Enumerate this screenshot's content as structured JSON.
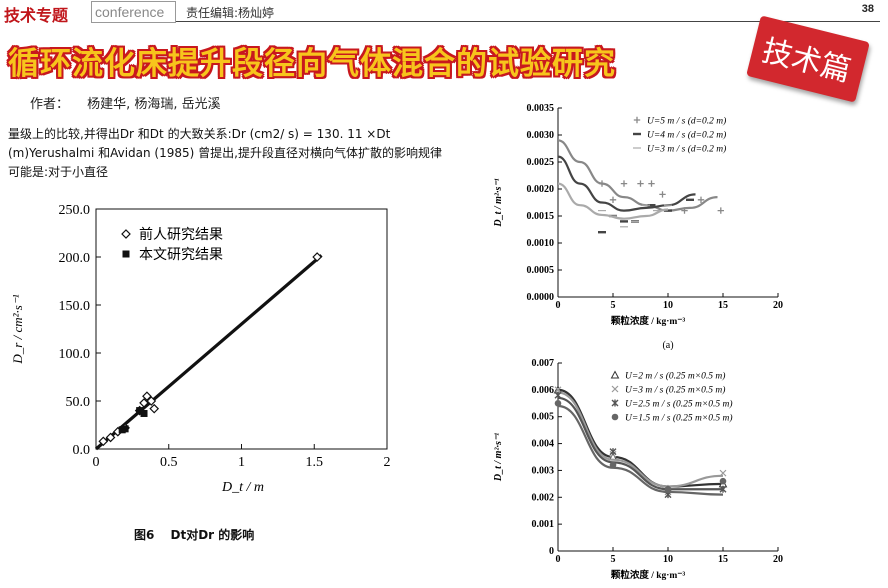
{
  "header": {
    "section_tag": "技术专题",
    "conference_label": "conference",
    "editor": "责任编辑:杨灿婷",
    "page_number": "38"
  },
  "article": {
    "title": "循环流化床提升段径向气体混合的试验研究",
    "badge": "技术篇",
    "authors_label": "作者：",
    "authors": "杨建华, 杨海瑞, 岳光溪",
    "body_text": "量级上的比较,并得出Dr 和Dt 的大致关系:Dr (cm2/ s) = 130. 11 ×Dt (m)Yerushalmi 和Avidan (1985) 曾提出,提升段直径对横向气体扩散的影响规律可能是:对于小直径"
  },
  "figure6": {
    "caption": "图6　 Dt对Dr 的影响",
    "colors": {
      "axis": "#111111",
      "fit": "#111111"
    },
    "chart_data": {
      "type": "scatter",
      "ylabel": "D_r / cm²·s⁻¹",
      "xlabel": "D_t / m",
      "xlim": [
        0,
        2
      ],
      "ylim": [
        0,
        250
      ],
      "xticks": [
        "0",
        "0.5",
        "1",
        "1.5",
        "2"
      ],
      "yticks": [
        "0.0",
        "50.0",
        "100.0",
        "150.0",
        "200.0",
        "250.0"
      ],
      "legend_position": "top-left",
      "series": [
        {
          "name": "前人研究结果",
          "marker": "diamond-open",
          "x": [
            0.05,
            0.1,
            0.15,
            0.2,
            0.3,
            0.33,
            0.35,
            0.38,
            0.4,
            1.52
          ],
          "y": [
            8,
            12,
            18,
            22,
            40,
            48,
            55,
            50,
            42,
            200
          ]
        },
        {
          "name": "本文研究结果",
          "marker": "square-filled",
          "x": [
            0.18,
            0.2,
            0.3,
            0.33
          ],
          "y": [
            20,
            21,
            40,
            37
          ]
        }
      ],
      "fit_line": {
        "x": [
          0,
          1.55
        ],
        "y": [
          0,
          201.7
        ]
      }
    }
  },
  "chart_a": {
    "sub_label": "(a)",
    "colors": {
      "s1": "#888888",
      "s2": "#444444",
      "s3": "#aaaaaa"
    },
    "chart_data": {
      "type": "scatter",
      "ylabel": "D_t / m²·s⁻¹",
      "xlabel": "颗粒浓度 / kg·m⁻³",
      "xlim": [
        0,
        20
      ],
      "ylim": [
        0,
        0.0035
      ],
      "xticks": [
        "0",
        "5",
        "10",
        "15",
        "20"
      ],
      "yticks": [
        "0.0000",
        "0.0005",
        "0.0010",
        "0.0015",
        "0.0020",
        "0.0025",
        "0.0030",
        "0.0035"
      ],
      "legend_position": "top-right",
      "series": [
        {
          "name": "U=5 m / s (d=0.2 m)",
          "marker": "plus",
          "x": [
            4,
            5,
            6,
            7.5,
            8.5,
            9.5,
            11.5,
            13,
            14.8
          ],
          "y": [
            0.0021,
            0.0018,
            0.0021,
            0.0021,
            0.0021,
            0.0019,
            0.0016,
            0.0018,
            0.0016
          ],
          "curve_x": [
            0,
            2,
            4,
            6,
            8,
            10,
            12,
            14.5
          ],
          "curve_y": [
            0.0029,
            0.0025,
            0.0021,
            0.00185,
            0.0017,
            0.0016,
            0.00165,
            0.00185
          ]
        },
        {
          "name": "U=4 m / s (d=0.2 m)",
          "marker": "dash",
          "x": [
            4,
            5,
            6,
            7,
            8.5,
            10,
            12
          ],
          "y": [
            0.0012,
            0.0015,
            0.0014,
            0.0014,
            0.0017,
            0.0016,
            0.0018
          ],
          "curve_x": [
            0,
            2,
            4,
            6,
            8,
            10,
            12.5
          ],
          "curve_y": [
            0.0026,
            0.0021,
            0.00175,
            0.0016,
            0.00165,
            0.0017,
            0.0019
          ]
        },
        {
          "name": "U=3 m / s (d=0.2 m)",
          "marker": "minus",
          "x": [
            4,
            5,
            6,
            7,
            8,
            9,
            10
          ],
          "y": [
            0.0016,
            0.0015,
            0.0013,
            0.0014,
            0.0017,
            0.0016,
            0.0017
          ],
          "curve_x": [
            0,
            2,
            4,
            6,
            8,
            10
          ],
          "curve_y": [
            0.0021,
            0.0017,
            0.00152,
            0.00145,
            0.0015,
            0.00162
          ]
        }
      ]
    }
  },
  "chart_b": {
    "colors": {
      "s1": "#333333",
      "s2": "#999999",
      "s3": "#555555",
      "s4": "#666666"
    },
    "chart_data": {
      "type": "scatter",
      "ylabel": "D_t / m²·s⁻¹",
      "xlabel": "颗粒浓度 / kg·m⁻³",
      "xlim": [
        0,
        20
      ],
      "ylim": [
        0,
        0.007
      ],
      "xticks": [
        "0",
        "5",
        "10",
        "15",
        "20"
      ],
      "yticks": [
        "0",
        "0.001",
        "0.002",
        "0.003",
        "0.004",
        "0.005",
        "0.006",
        "0.007"
      ],
      "legend_position": "top-right",
      "series": [
        {
          "name": "U=2 m / s (0.25 m×0.5 m)",
          "marker": "triangle-open",
          "x": [
            0,
            5,
            10,
            15
          ],
          "y": [
            0.006,
            0.0035,
            0.0023,
            0.0025
          ],
          "curve_x": [
            0,
            5,
            10,
            15
          ],
          "curve_y": [
            0.006,
            0.0035,
            0.0024,
            0.0025
          ]
        },
        {
          "name": "U=3 m / s (0.25 m×0.5 m)",
          "marker": "x",
          "x": [
            0,
            5,
            10,
            15
          ],
          "y": [
            0.006,
            0.0036,
            0.0022,
            0.0029
          ],
          "curve_x": [
            0,
            5,
            10,
            15
          ],
          "curve_y": [
            0.0059,
            0.0034,
            0.0024,
            0.0028
          ]
        },
        {
          "name": "U=2.5 m / s (0.25 m×0.5 m)",
          "marker": "asterisk",
          "x": [
            0,
            5,
            10,
            15
          ],
          "y": [
            0.0058,
            0.0037,
            0.0021,
            0.0023
          ],
          "curve_x": [
            0,
            5,
            10,
            15
          ],
          "curve_y": [
            0.0057,
            0.0033,
            0.0023,
            0.0023
          ]
        },
        {
          "name": "U=1.5 m / s (0.25 m×0.5 m)",
          "marker": "circle-filled",
          "x": [
            0,
            5,
            10,
            15
          ],
          "y": [
            0.0055,
            0.0032,
            0.0023,
            0.0026
          ],
          "curve_x": [
            0,
            5,
            10,
            15
          ],
          "curve_y": [
            0.0054,
            0.0031,
            0.0022,
            0.0021
          ]
        }
      ]
    }
  }
}
